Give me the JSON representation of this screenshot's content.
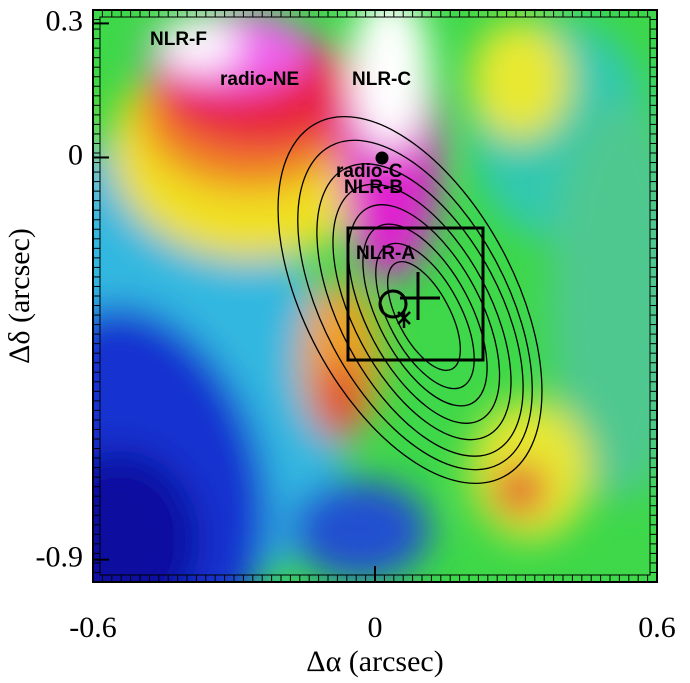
{
  "chart_data": {
    "type": "image",
    "x_label": "Δα  (arcsec)",
    "y_label": "Δδ  (arcsec)",
    "xlim": [
      -0.6,
      0.6
    ],
    "ylim": [
      -0.95,
      0.33
    ],
    "xticks": [
      -0.6,
      0,
      0.6
    ],
    "yticks": [
      0.3,
      0,
      -0.9
    ],
    "annotations": [
      "NLR-F",
      "radio-NE",
      "NLR-C",
      "radio-C",
      "NLR-B",
      "NLR-A"
    ]
  }
}
